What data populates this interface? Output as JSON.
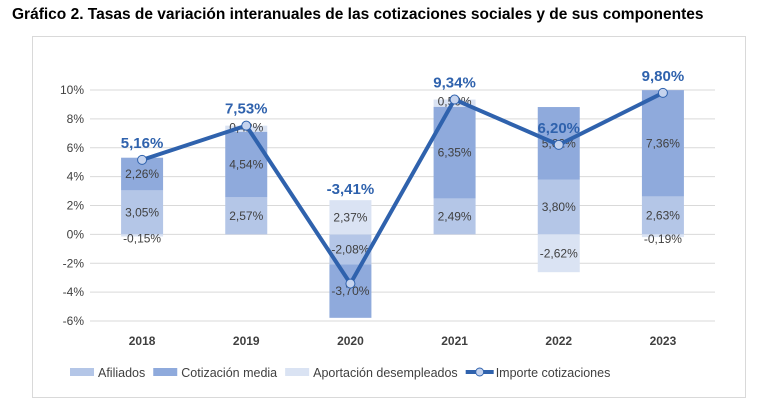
{
  "chart_data": {
    "type": "bar",
    "title": "Gráfico 2. Tasas de variación interanuales de las cotizaciones sociales y de sus componentes",
    "categories": [
      "2018",
      "2019",
      "2020",
      "2021",
      "2022",
      "2023"
    ],
    "ylim": [
      -6,
      10
    ],
    "yticks": [
      -6,
      -4,
      -2,
      0,
      2,
      4,
      6,
      8,
      10
    ],
    "ytick_format": "%",
    "grid": true,
    "legend_position": "bottom",
    "stacked": true,
    "series": [
      {
        "name": "Afiliados",
        "type": "bar",
        "color": "#b4c6e7",
        "values": [
          3.05,
          2.57,
          -2.08,
          2.49,
          3.8,
          2.63
        ],
        "labels": [
          "3,05%",
          "2,57%",
          "-2,08%",
          "2,49%",
          "3,80%",
          "2,63%"
        ]
      },
      {
        "name": "Cotización media",
        "type": "bar",
        "color": "#8faadc",
        "values": [
          2.26,
          4.54,
          -3.7,
          6.35,
          5.02,
          7.36
        ],
        "labels": [
          "2,26%",
          "4,54%",
          "-3,70%",
          "6,35%",
          "5,02%",
          "7,36%"
        ]
      },
      {
        "name": "Aportación desempleados",
        "type": "bar",
        "color": "#dae3f3",
        "values": [
          -0.15,
          0.42,
          2.37,
          0.5,
          -2.62,
          -0.19
        ],
        "labels": [
          "-0,15%",
          "0,42%",
          "2,37%",
          "0,50%",
          "-2,62%",
          "-0,19%"
        ]
      },
      {
        "name": "Importe cotizaciones",
        "type": "line",
        "color": "#2f62ad",
        "values": [
          5.16,
          7.53,
          -3.41,
          9.34,
          6.2,
          9.8
        ],
        "labels": [
          "5,16%",
          "7,53%",
          "-3,41%",
          "9,34%",
          "6,20%",
          "9,80%"
        ]
      }
    ]
  }
}
